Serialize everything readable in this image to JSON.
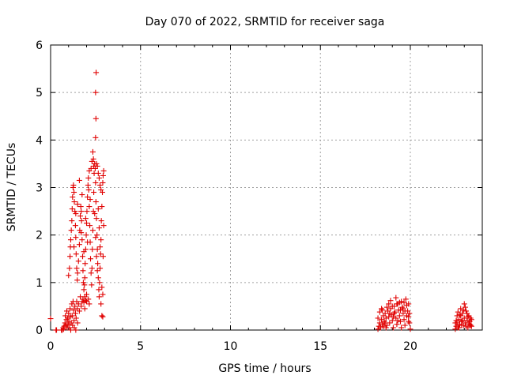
{
  "chart_data": {
    "type": "scatter",
    "title": "Day 070 of 2022, SRMTID for receiver saga",
    "xlabel": "GPS time / hours",
    "ylabel": "SRMTID / TECUs",
    "xlim": [
      0,
      24
    ],
    "ylim": [
      0,
      6
    ],
    "xticks": [
      0,
      5,
      10,
      15,
      20
    ],
    "yticks": [
      0,
      1,
      2,
      3,
      4,
      5,
      6
    ],
    "grid": true,
    "marker": "+",
    "color": "#e00000",
    "series": [
      {
        "name": "SRMTID",
        "points": [
          [
            0.0,
            0.24
          ],
          [
            0.3,
            0.0
          ],
          [
            0.33,
            0.0
          ],
          [
            0.6,
            0.0
          ],
          [
            0.65,
            0.0
          ],
          [
            0.7,
            0.05
          ],
          [
            0.72,
            0.02
          ],
          [
            0.75,
            0.08
          ],
          [
            0.8,
            0.15
          ],
          [
            0.82,
            0.3
          ],
          [
            0.85,
            0.1
          ],
          [
            0.88,
            0.22
          ],
          [
            0.9,
            0.4
          ],
          [
            0.92,
            0.05
          ],
          [
            0.95,
            0.25
          ],
          [
            0.97,
            0.12
          ],
          [
            1.0,
            0.35
          ],
          [
            1.02,
            0.18
          ],
          [
            1.05,
            0.05
          ],
          [
            1.08,
            0.45
          ],
          [
            1.1,
            0.28
          ],
          [
            1.12,
            0.0
          ],
          [
            1.15,
            0.15
          ],
          [
            1.18,
            0.55
          ],
          [
            1.2,
            0.3
          ],
          [
            1.22,
            0.1
          ],
          [
            1.25,
            0.6
          ],
          [
            1.28,
            0.42
          ],
          [
            1.3,
            0.2
          ],
          [
            1.32,
            0.05
          ],
          [
            1.35,
            0.5
          ],
          [
            1.38,
            0.35
          ],
          [
            1.4,
            0.0
          ],
          [
            1.42,
            0.25
          ],
          [
            1.45,
            0.6
          ],
          [
            1.48,
            0.45
          ],
          [
            1.5,
            0.15
          ],
          [
            1.55,
            0.55
          ],
          [
            1.6,
            0.4
          ],
          [
            1.65,
            0.7
          ],
          [
            1.7,
            0.5
          ],
          [
            1.75,
            0.6
          ],
          [
            1.8,
            0.65
          ],
          [
            1.85,
            0.58
          ],
          [
            1.9,
            0.7
          ],
          [
            1.95,
            0.62
          ],
          [
            2.0,
            0.75
          ],
          [
            1.0,
            1.15
          ],
          [
            1.05,
            1.3
          ],
          [
            1.08,
            1.55
          ],
          [
            1.1,
            1.75
          ],
          [
            1.12,
            1.9
          ],
          [
            1.15,
            2.1
          ],
          [
            1.18,
            2.3
          ],
          [
            1.2,
            2.55
          ],
          [
            1.22,
            2.8
          ],
          [
            1.25,
            3.0
          ],
          [
            1.27,
            3.05
          ],
          [
            1.3,
            2.9
          ],
          [
            1.32,
            2.7
          ],
          [
            1.35,
            2.5
          ],
          [
            1.38,
            2.2
          ],
          [
            1.4,
            1.95
          ],
          [
            1.42,
            1.6
          ],
          [
            1.45,
            1.3
          ],
          [
            1.48,
            1.05
          ],
          [
            1.5,
            1.2
          ],
          [
            1.55,
            1.45
          ],
          [
            1.6,
            1.8
          ],
          [
            1.62,
            2.1
          ],
          [
            1.65,
            2.4
          ],
          [
            1.68,
            2.6
          ],
          [
            1.7,
            2.5
          ],
          [
            1.72,
            2.3
          ],
          [
            1.75,
            1.9
          ],
          [
            1.78,
            1.55
          ],
          [
            1.8,
            1.25
          ],
          [
            1.82,
            1.0
          ],
          [
            1.85,
            0.85
          ],
          [
            1.88,
            0.95
          ],
          [
            1.9,
            1.1
          ],
          [
            1.92,
            1.4
          ],
          [
            1.95,
            1.7
          ],
          [
            1.98,
            2.0
          ],
          [
            2.0,
            2.25
          ],
          [
            2.02,
            2.5
          ],
          [
            2.05,
            2.8
          ],
          [
            2.08,
            3.05
          ],
          [
            2.1,
            3.2
          ],
          [
            2.12,
            2.95
          ],
          [
            2.15,
            2.6
          ],
          [
            2.18,
            2.2
          ],
          [
            2.2,
            1.85
          ],
          [
            2.22,
            1.5
          ],
          [
            2.25,
            1.2
          ],
          [
            2.28,
            0.95
          ],
          [
            2.3,
            1.3
          ],
          [
            2.32,
            1.7
          ],
          [
            2.35,
            2.1
          ],
          [
            2.38,
            2.5
          ],
          [
            2.4,
            2.9
          ],
          [
            2.42,
            3.3
          ],
          [
            2.45,
            3.5
          ],
          [
            2.48,
            3.4
          ],
          [
            2.5,
            3.1
          ],
          [
            2.52,
            2.7
          ],
          [
            2.55,
            2.35
          ],
          [
            2.58,
            2.0
          ],
          [
            2.6,
            1.7
          ],
          [
            2.62,
            1.4
          ],
          [
            2.65,
            1.1
          ],
          [
            2.68,
            0.85
          ],
          [
            2.7,
            0.7
          ],
          [
            2.72,
            1.0
          ],
          [
            2.75,
            1.3
          ],
          [
            2.78,
            1.6
          ],
          [
            2.8,
            1.9
          ],
          [
            2.82,
            2.3
          ],
          [
            2.85,
            2.6
          ],
          [
            2.88,
            2.9
          ],
          [
            2.9,
            3.1
          ],
          [
            2.92,
            3.25
          ],
          [
            2.95,
            3.35
          ],
          [
            1.3,
            1.75
          ],
          [
            1.4,
            2.45
          ],
          [
            1.5,
            2.65
          ],
          [
            1.6,
            3.15
          ],
          [
            1.7,
            2.05
          ],
          [
            1.75,
            2.85
          ],
          [
            1.85,
            1.65
          ],
          [
            1.95,
            2.35
          ],
          [
            2.05,
            1.85
          ],
          [
            2.15,
            3.35
          ],
          [
            2.2,
            2.75
          ],
          [
            2.25,
            3.4
          ],
          [
            2.3,
            3.55
          ],
          [
            2.35,
            3.75
          ],
          [
            2.38,
            3.6
          ],
          [
            2.4,
            3.45
          ],
          [
            2.45,
            2.45
          ],
          [
            2.5,
            1.95
          ],
          [
            2.55,
            1.55
          ],
          [
            2.6,
            1.25
          ],
          [
            2.65,
            2.55
          ],
          [
            2.7,
            2.15
          ],
          [
            2.75,
            1.75
          ],
          [
            2.8,
            0.55
          ],
          [
            2.85,
            0.3
          ],
          [
            2.9,
            0.75
          ],
          [
            2.92,
            1.55
          ],
          [
            2.95,
            2.2
          ],
          [
            2.5,
            4.05
          ],
          [
            2.52,
            4.45
          ],
          [
            2.5,
            5.0
          ],
          [
            2.53,
            5.42
          ],
          [
            2.55,
            3.5
          ],
          [
            2.6,
            3.45
          ],
          [
            2.65,
            3.3
          ],
          [
            2.7,
            3.2
          ],
          [
            2.75,
            3.05
          ],
          [
            2.8,
            2.95
          ],
          [
            2.85,
            0.9
          ],
          [
            2.9,
            0.28
          ],
          [
            1.9,
            0.45
          ],
          [
            2.0,
            0.6
          ],
          [
            2.1,
            0.65
          ],
          [
            2.15,
            0.55
          ],
          [
            18.2,
            0.02
          ],
          [
            18.25,
            0.08
          ],
          [
            18.3,
            0.15
          ],
          [
            18.35,
            0.05
          ],
          [
            18.4,
            0.22
          ],
          [
            18.45,
            0.12
          ],
          [
            18.5,
            0.3
          ],
          [
            18.55,
            0.18
          ],
          [
            18.6,
            0.35
          ],
          [
            18.65,
            0.25
          ],
          [
            18.7,
            0.1
          ],
          [
            18.75,
            0.4
          ],
          [
            18.8,
            0.28
          ],
          [
            18.85,
            0.15
          ],
          [
            18.9,
            0.45
          ],
          [
            18.95,
            0.32
          ],
          [
            19.0,
            0.2
          ],
          [
            19.05,
            0.05
          ],
          [
            19.1,
            0.5
          ],
          [
            19.15,
            0.38
          ],
          [
            19.2,
            0.25
          ],
          [
            19.25,
            0.12
          ],
          [
            19.3,
            0.55
          ],
          [
            19.35,
            0.42
          ],
          [
            19.4,
            0.3
          ],
          [
            19.45,
            0.18
          ],
          [
            19.5,
            0.6
          ],
          [
            19.55,
            0.48
          ],
          [
            19.6,
            0.35
          ],
          [
            19.65,
            0.22
          ],
          [
            19.7,
            0.1
          ],
          [
            19.75,
            0.65
          ],
          [
            19.8,
            0.52
          ],
          [
            19.85,
            0.4
          ],
          [
            19.9,
            0.28
          ],
          [
            19.95,
            0.15
          ],
          [
            20.0,
            0.02
          ],
          [
            18.4,
            0.45
          ],
          [
            18.6,
            0.15
          ],
          [
            18.8,
            0.55
          ],
          [
            19.0,
            0.5
          ],
          [
            19.2,
            0.68
          ],
          [
            19.4,
            0.58
          ],
          [
            19.6,
            0.45
          ],
          [
            19.8,
            0.3
          ],
          [
            19.9,
            0.55
          ],
          [
            18.3,
            0.38
          ],
          [
            18.5,
            0.08
          ],
          [
            18.7,
            0.48
          ],
          [
            18.9,
            0.62
          ],
          [
            19.1,
            0.35
          ],
          [
            19.3,
            0.2
          ],
          [
            19.5,
            0.05
          ],
          [
            19.7,
            0.4
          ],
          [
            19.9,
            0.18
          ],
          [
            19.95,
            0.35
          ],
          [
            18.2,
            0.25
          ],
          [
            18.45,
            0.42
          ],
          [
            18.65,
            0.05
          ],
          [
            18.85,
            0.35
          ],
          [
            19.05,
            0.28
          ],
          [
            19.25,
            0.55
          ],
          [
            19.45,
            0.42
          ],
          [
            19.65,
            0.58
          ],
          [
            22.5,
            0.02
          ],
          [
            22.55,
            0.08
          ],
          [
            22.6,
            0.15
          ],
          [
            22.65,
            0.05
          ],
          [
            22.7,
            0.22
          ],
          [
            22.75,
            0.12
          ],
          [
            22.8,
            0.3
          ],
          [
            22.85,
            0.18
          ],
          [
            22.9,
            0.35
          ],
          [
            22.95,
            0.1
          ],
          [
            23.0,
            0.25
          ],
          [
            23.05,
            0.15
          ],
          [
            23.1,
            0.4
          ],
          [
            23.15,
            0.2
          ],
          [
            23.2,
            0.05
          ],
          [
            23.25,
            0.3
          ],
          [
            23.3,
            0.18
          ],
          [
            23.35,
            0.1
          ],
          [
            23.4,
            0.22
          ],
          [
            22.6,
            0.3
          ],
          [
            22.7,
            0.05
          ],
          [
            22.8,
            0.45
          ],
          [
            22.9,
            0.2
          ],
          [
            23.0,
            0.55
          ],
          [
            23.1,
            0.08
          ],
          [
            23.2,
            0.28
          ],
          [
            23.3,
            0.12
          ],
          [
            23.35,
            0.25
          ],
          [
            22.55,
            0.2
          ],
          [
            22.75,
            0.32
          ],
          [
            22.95,
            0.42
          ],
          [
            23.15,
            0.35
          ],
          [
            22.65,
            0.38
          ],
          [
            22.85,
            0.1
          ],
          [
            23.05,
            0.48
          ],
          [
            23.25,
            0.15
          ],
          [
            22.5,
            0.15
          ],
          [
            23.4,
            0.08
          ]
        ]
      }
    ]
  }
}
